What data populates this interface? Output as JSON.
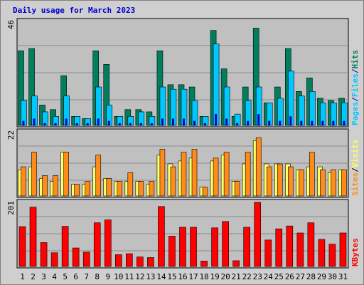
{
  "title": "Daily usage for March 2023",
  "colors": {
    "page_bg": "#cfcfcf",
    "panel_bg": "#c0c0c0",
    "grid": "#8c8c8c",
    "title": "#0000cc",
    "weekend_label": "#007a3d",
    "weekday_label": "#000000",
    "separator": "#000000"
  },
  "chart_data": [
    {
      "type": "bar",
      "panel": "top",
      "max_label": "46",
      "ylim": [
        0,
        46
      ],
      "series": [
        {
          "name": "Hits",
          "color": "#007f5f",
          "values": [
            33,
            34,
            9,
            7,
            22,
            4,
            3,
            33,
            27,
            4,
            7,
            7,
            6,
            33,
            18,
            18,
            17,
            4,
            42,
            25,
            4,
            17,
            43,
            10,
            17,
            34,
            15,
            21,
            12,
            11,
            12
          ]
        },
        {
          "name": "Files",
          "color": "#00c8ff",
          "values": [
            11,
            13,
            6,
            4,
            13,
            4,
            3,
            17,
            9,
            4,
            4,
            6,
            4,
            17,
            16,
            16,
            11,
            4,
            36,
            17,
            5,
            11,
            17,
            10,
            12,
            24,
            13,
            15,
            10,
            10,
            10
          ]
        },
        {
          "name": "Pages",
          "color": "#0000cc",
          "values": [
            2,
            3,
            1,
            1,
            3,
            1,
            1,
            3,
            2,
            1,
            1,
            1,
            1,
            3,
            3,
            3,
            2,
            1,
            5,
            3,
            1,
            2,
            5,
            2,
            2,
            4,
            2,
            2,
            2,
            2,
            2
          ]
        }
      ],
      "legend": [
        "Pages",
        "Files",
        "Hits"
      ],
      "legend_colors": [
        "#00c8ff",
        "#0000cc",
        "#00c8ff",
        "#0000cc",
        "#007f5f"
      ],
      "legend_separators": [
        "/",
        "/"
      ]
    },
    {
      "type": "bar",
      "panel": "middle",
      "max_label": "22",
      "ylim": [
        0,
        22
      ],
      "series": [
        {
          "name": "Visits",
          "color": "#ffff66",
          "values": [
            9,
            10,
            6,
            5,
            15,
            4,
            4,
            10,
            6,
            5,
            5,
            5,
            4,
            14,
            11,
            12,
            13,
            3,
            12,
            14,
            5,
            11,
            19,
            11,
            11,
            11,
            9,
            10,
            10,
            8,
            9
          ]
        },
        {
          "name": "Sites",
          "color": "#ff8c1a",
          "values": [
            10,
            15,
            7,
            7,
            15,
            4,
            5,
            14,
            6,
            5,
            8,
            5,
            5,
            16,
            10,
            15,
            16,
            3,
            13,
            15,
            5,
            15,
            20,
            10,
            11,
            10,
            9,
            15,
            9,
            9,
            9
          ]
        }
      ],
      "legend": [
        "Sites",
        "Visits"
      ],
      "legend_colors": [
        "#ff8c1a",
        "#000000",
        "#ffff66"
      ],
      "legend_separators": [
        "/"
      ]
    },
    {
      "type": "bar",
      "panel": "bottom",
      "max_label": "201",
      "ylim": [
        0,
        201
      ],
      "series": [
        {
          "name": "KBytes",
          "color": "#ff0000",
          "values": [
            125,
            186,
            75,
            43,
            126,
            58,
            45,
            137,
            146,
            37,
            40,
            30,
            28,
            188,
            95,
            123,
            123,
            17,
            121,
            141,
            18,
            123,
            201,
            83,
            118,
            127,
            105,
            137,
            85,
            70,
            105
          ]
        }
      ],
      "legend": [
        "KBytes"
      ],
      "legend_colors": [
        "#ff0000"
      ],
      "legend_separators": []
    }
  ],
  "x_axis": {
    "days": [
      "1",
      "2",
      "3",
      "4",
      "5",
      "6",
      "7",
      "8",
      "9",
      "10",
      "11",
      "12",
      "13",
      "14",
      "15",
      "16",
      "17",
      "18",
      "19",
      "20",
      "21",
      "22",
      "23",
      "24",
      "25",
      "26",
      "27",
      "28",
      "29",
      "30",
      "31"
    ],
    "weekend_days": [
      "4",
      "5",
      "11",
      "12",
      "18",
      "19",
      "25",
      "26"
    ]
  }
}
